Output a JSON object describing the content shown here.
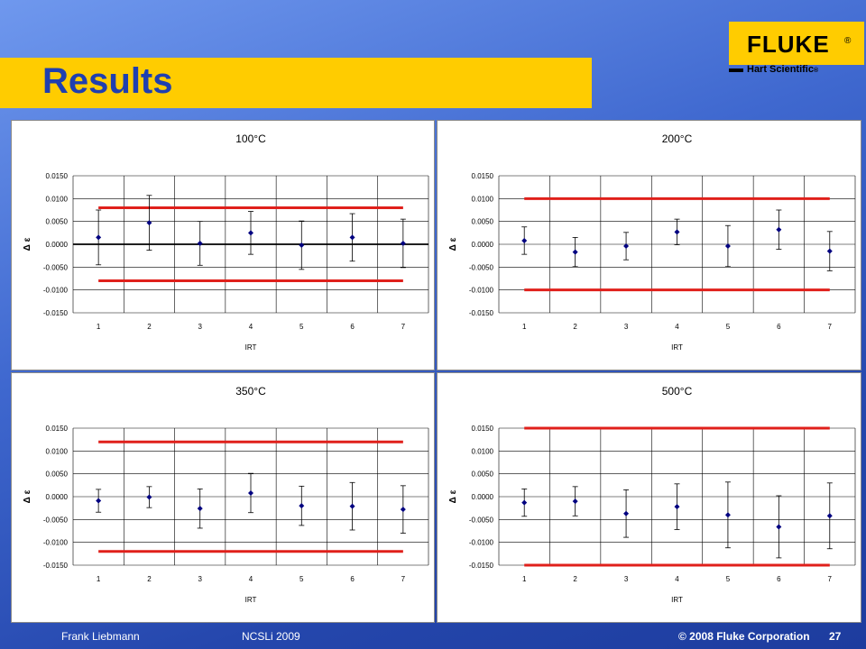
{
  "slide": {
    "title": "Results",
    "logo": {
      "brand": "FLUKE",
      "reg": "®",
      "subbrand": "Hart Scientific"
    },
    "footer": {
      "author": "Frank Liebmann",
      "event": "NCSLi 2009",
      "copyright": "© 2008 Fluke Corporation",
      "page": "27"
    },
    "colors": {
      "title_bar": "#ffcc00",
      "title_text": "#1f3fb0",
      "limit_line": "#e0201b",
      "points": "#000080"
    }
  },
  "chart_data": [
    {
      "type": "scatter",
      "title": "100°C",
      "xlabel": "IRT",
      "ylabel": "Δ ε",
      "categories": [
        "1",
        "2",
        "3",
        "4",
        "5",
        "6",
        "7"
      ],
      "values": [
        0.0015,
        0.0047,
        0.0002,
        0.0025,
        -0.0002,
        0.0015,
        0.0002
      ],
      "error": [
        0.006,
        0.006,
        0.0048,
        0.0047,
        0.0053,
        0.0052,
        0.0053
      ],
      "limits": [
        0.008,
        -0.008
      ],
      "zero_line": true,
      "ylim": [
        -0.015,
        0.015
      ],
      "yticks": [
        "0.0150",
        "0.0100",
        "0.0050",
        "0.0000",
        "-0.0050",
        "-0.0100",
        "-0.0150"
      ]
    },
    {
      "type": "scatter",
      "title": "200°C",
      "xlabel": "IRT",
      "ylabel": "Δ ε",
      "categories": [
        "1",
        "2",
        "3",
        "4",
        "5",
        "6",
        "7"
      ],
      "values": [
        0.0008,
        -0.0017,
        -0.0004,
        0.0027,
        -0.0004,
        0.0032,
        -0.0015
      ],
      "error": [
        0.003,
        0.0032,
        0.003,
        0.0028,
        0.0045,
        0.0043,
        0.0043
      ],
      "limits": [
        0.01,
        -0.01
      ],
      "zero_line": false,
      "ylim": [
        -0.015,
        0.015
      ],
      "yticks": [
        "0.0150",
        "0.0100",
        "0.0050",
        "0.0000",
        "-0.0050",
        "-0.0100",
        "-0.0150"
      ]
    },
    {
      "type": "scatter",
      "title": "350°C",
      "xlabel": "IRT",
      "ylabel": "Δ ε",
      "categories": [
        "1",
        "2",
        "3",
        "4",
        "5",
        "6",
        "7"
      ],
      "values": [
        -0.0009,
        -0.0001,
        -0.0026,
        0.0008,
        -0.002,
        -0.0021,
        -0.0028
      ],
      "error": [
        0.0025,
        0.0023,
        0.0043,
        0.0043,
        0.0043,
        0.0052,
        0.0052
      ],
      "limits": [
        0.012,
        -0.012
      ],
      "zero_line": false,
      "ylim": [
        -0.015,
        0.015
      ],
      "yticks": [
        "0.0150",
        "0.0100",
        "0.0050",
        "0.0000",
        "-0.0050",
        "-0.0100",
        "-0.0150"
      ]
    },
    {
      "type": "scatter",
      "title": "500°C",
      "xlabel": "IRT",
      "ylabel": "Δ ε",
      "categories": [
        "1",
        "2",
        "3",
        "4",
        "5",
        "6",
        "7"
      ],
      "values": [
        -0.0013,
        -0.001,
        -0.0037,
        -0.0022,
        -0.004,
        -0.0066,
        -0.0042
      ],
      "error": [
        0.003,
        0.0032,
        0.0052,
        0.005,
        0.0072,
        0.0068,
        0.0072
      ],
      "limits": [
        0.015,
        -0.015
      ],
      "zero_line": false,
      "ylim": [
        -0.015,
        0.015
      ],
      "yticks": [
        "0.0150",
        "0.0100",
        "0.0050",
        "0.0000",
        "-0.0050",
        "-0.0100",
        "-0.0150"
      ]
    }
  ]
}
